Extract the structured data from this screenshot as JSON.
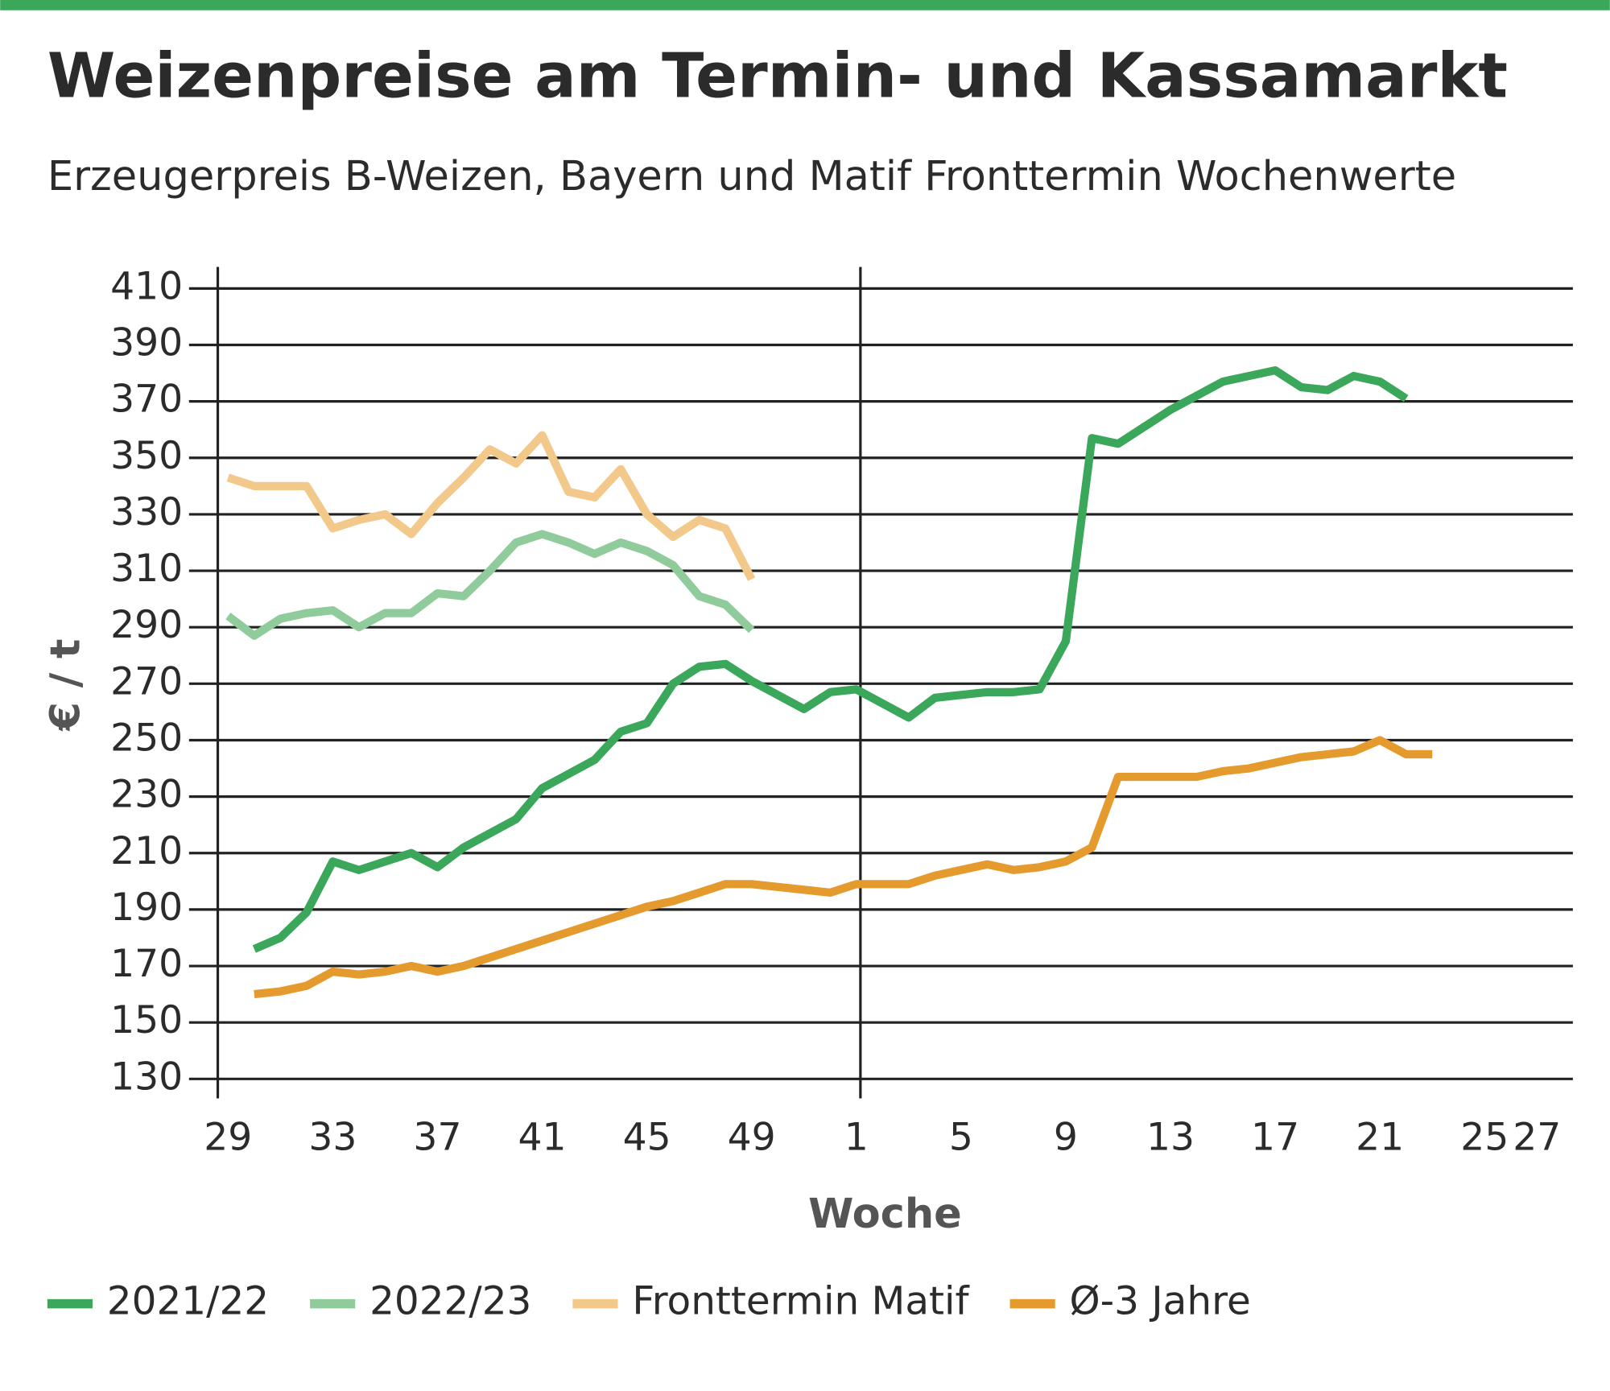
{
  "chart_data": {
    "type": "line",
    "title": "Weizenpreise am Termin- und Kassamarkt",
    "subtitle": "Erzeugerpreis B-Weizen, Bayern und Matif Fronttermin Wochenwerte",
    "x_label": "Woche",
    "y_label": "€ / t",
    "categories": [
      "29",
      null,
      null,
      null,
      "33",
      null,
      null,
      null,
      "37",
      null,
      null,
      null,
      "41",
      null,
      null,
      null,
      "45",
      null,
      null,
      null,
      "49",
      null,
      null,
      null,
      "1",
      null,
      null,
      null,
      "5",
      null,
      null,
      null,
      "9",
      null,
      null,
      null,
      "13",
      null,
      null,
      null,
      "17",
      null,
      null,
      null,
      "21",
      null,
      null,
      null,
      "25",
      null,
      "27"
    ],
    "ylim": [
      130,
      410
    ],
    "yticks": [
      130,
      150,
      170,
      190,
      210,
      230,
      250,
      270,
      290,
      310,
      330,
      350,
      370,
      390,
      410
    ],
    "grid": true,
    "legend": "bottom",
    "series": [
      {
        "name": "2021/22",
        "color": "#3aa75a",
        "values": [
          null,
          176,
          180,
          189,
          207,
          204,
          207,
          210,
          205,
          212,
          217,
          222,
          233,
          238,
          243,
          253,
          256,
          270,
          276,
          277,
          271,
          266,
          261,
          267,
          268,
          263,
          258,
          265,
          266,
          267,
          267,
          268,
          285,
          357,
          355,
          361,
          367,
          372,
          377,
          379,
          381,
          375,
          374,
          379,
          377,
          371,
          null,
          null,
          null,
          null,
          null
        ]
      },
      {
        "name": "2022/23",
        "color": "#90cc9b",
        "values": [
          294,
          287,
          293,
          295,
          296,
          290,
          295,
          295,
          302,
          301,
          310,
          320,
          323,
          320,
          316,
          320,
          317,
          312,
          301,
          298,
          289,
          null,
          null,
          null,
          null,
          null,
          null,
          null,
          null,
          null,
          null,
          null,
          null,
          null,
          null,
          null,
          null,
          null,
          null,
          null,
          null,
          null,
          null,
          null,
          null,
          null,
          null,
          null,
          null,
          null,
          null
        ]
      },
      {
        "name": "Fronttermin Matif",
        "color": "#f2c98a",
        "values": [
          343,
          340,
          340,
          340,
          325,
          328,
          330,
          323,
          334,
          343,
          353,
          348,
          358,
          338,
          336,
          346,
          330,
          322,
          328,
          325,
          307,
          null,
          null,
          null,
          null,
          null,
          null,
          null,
          null,
          null,
          null,
          null,
          null,
          null,
          null,
          null,
          null,
          null,
          null,
          null,
          null,
          null,
          null,
          null,
          null,
          null,
          null,
          null,
          null,
          null,
          null
        ]
      },
      {
        "name": "Ø-3 Jahre",
        "color": "#e59a2e",
        "values": [
          null,
          160,
          161,
          163,
          168,
          167,
          168,
          170,
          168,
          170,
          173,
          176,
          179,
          182,
          185,
          188,
          191,
          193,
          196,
          199,
          199,
          198,
          197,
          196,
          199,
          199,
          199,
          202,
          204,
          206,
          204,
          205,
          207,
          212,
          237,
          237,
          237,
          237,
          239,
          240,
          242,
          244,
          245,
          246,
          250,
          245,
          245,
          null,
          null,
          null,
          null
        ]
      }
    ]
  }
}
